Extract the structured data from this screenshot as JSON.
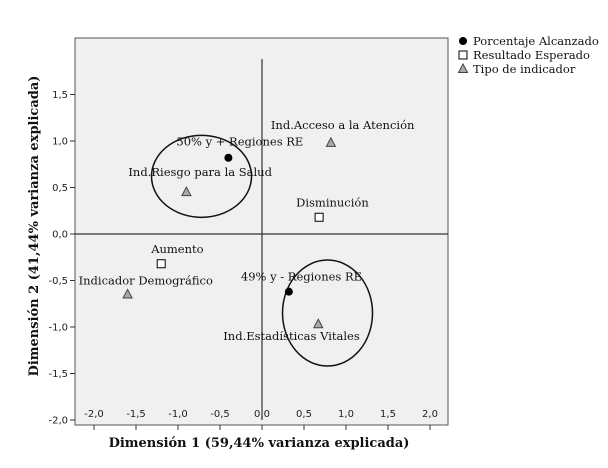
{
  "chart_data": {
    "type": "scatter",
    "xlabel": "Dimensión 1 (59,44% varianza explicada)",
    "ylabel": "Dimensión 2 (41,44% varianza explicada)",
    "xlim": [
      -2.0,
      2.0
    ],
    "ylim": [
      -2.0,
      2.0
    ],
    "x_ticks": [
      "-2,0",
      "-1,5",
      "-1,0",
      "-0,5",
      "0,0",
      "0,5",
      "1,0",
      "1,5",
      "2,0"
    ],
    "y_ticks": [
      "1,5",
      "1,0",
      "0,5",
      "0,0",
      "-0,5",
      "-1,0",
      "-1,5",
      "-2,0"
    ],
    "legend_position": "top-right",
    "colors": {
      "plot_background": "#f0f0f0",
      "marker": "#000000",
      "triangle_fill": "#aaaaaa"
    },
    "series": [
      {
        "name": "Porcentaje Alcanzado",
        "marker": "circle-filled",
        "points": [
          {
            "x": -0.4,
            "y": 0.82,
            "label": "50% y +  Regiones RE"
          },
          {
            "x": 0.32,
            "y": -0.62,
            "label": "49% y -  Regiones RE"
          }
        ]
      },
      {
        "name": "Resultado Esperado",
        "marker": "square-open",
        "points": [
          {
            "x": 0.68,
            "y": 0.18,
            "label": "Disminución"
          },
          {
            "x": -1.2,
            "y": -0.32,
            "label": "Aumento"
          }
        ]
      },
      {
        "name": "Tipo de indicador",
        "marker": "triangle",
        "points": [
          {
            "x": 0.82,
            "y": 0.98,
            "label": "Ind.Acceso a la Atención"
          },
          {
            "x": -0.9,
            "y": 0.45,
            "label": "Ind.Riesgo para la Salud"
          },
          {
            "x": -1.6,
            "y": -0.65,
            "label": "Indicador Demográfico"
          },
          {
            "x": 0.67,
            "y": -0.97,
            "label": "Ind.Estadísticas Vitales"
          }
        ]
      }
    ]
  }
}
